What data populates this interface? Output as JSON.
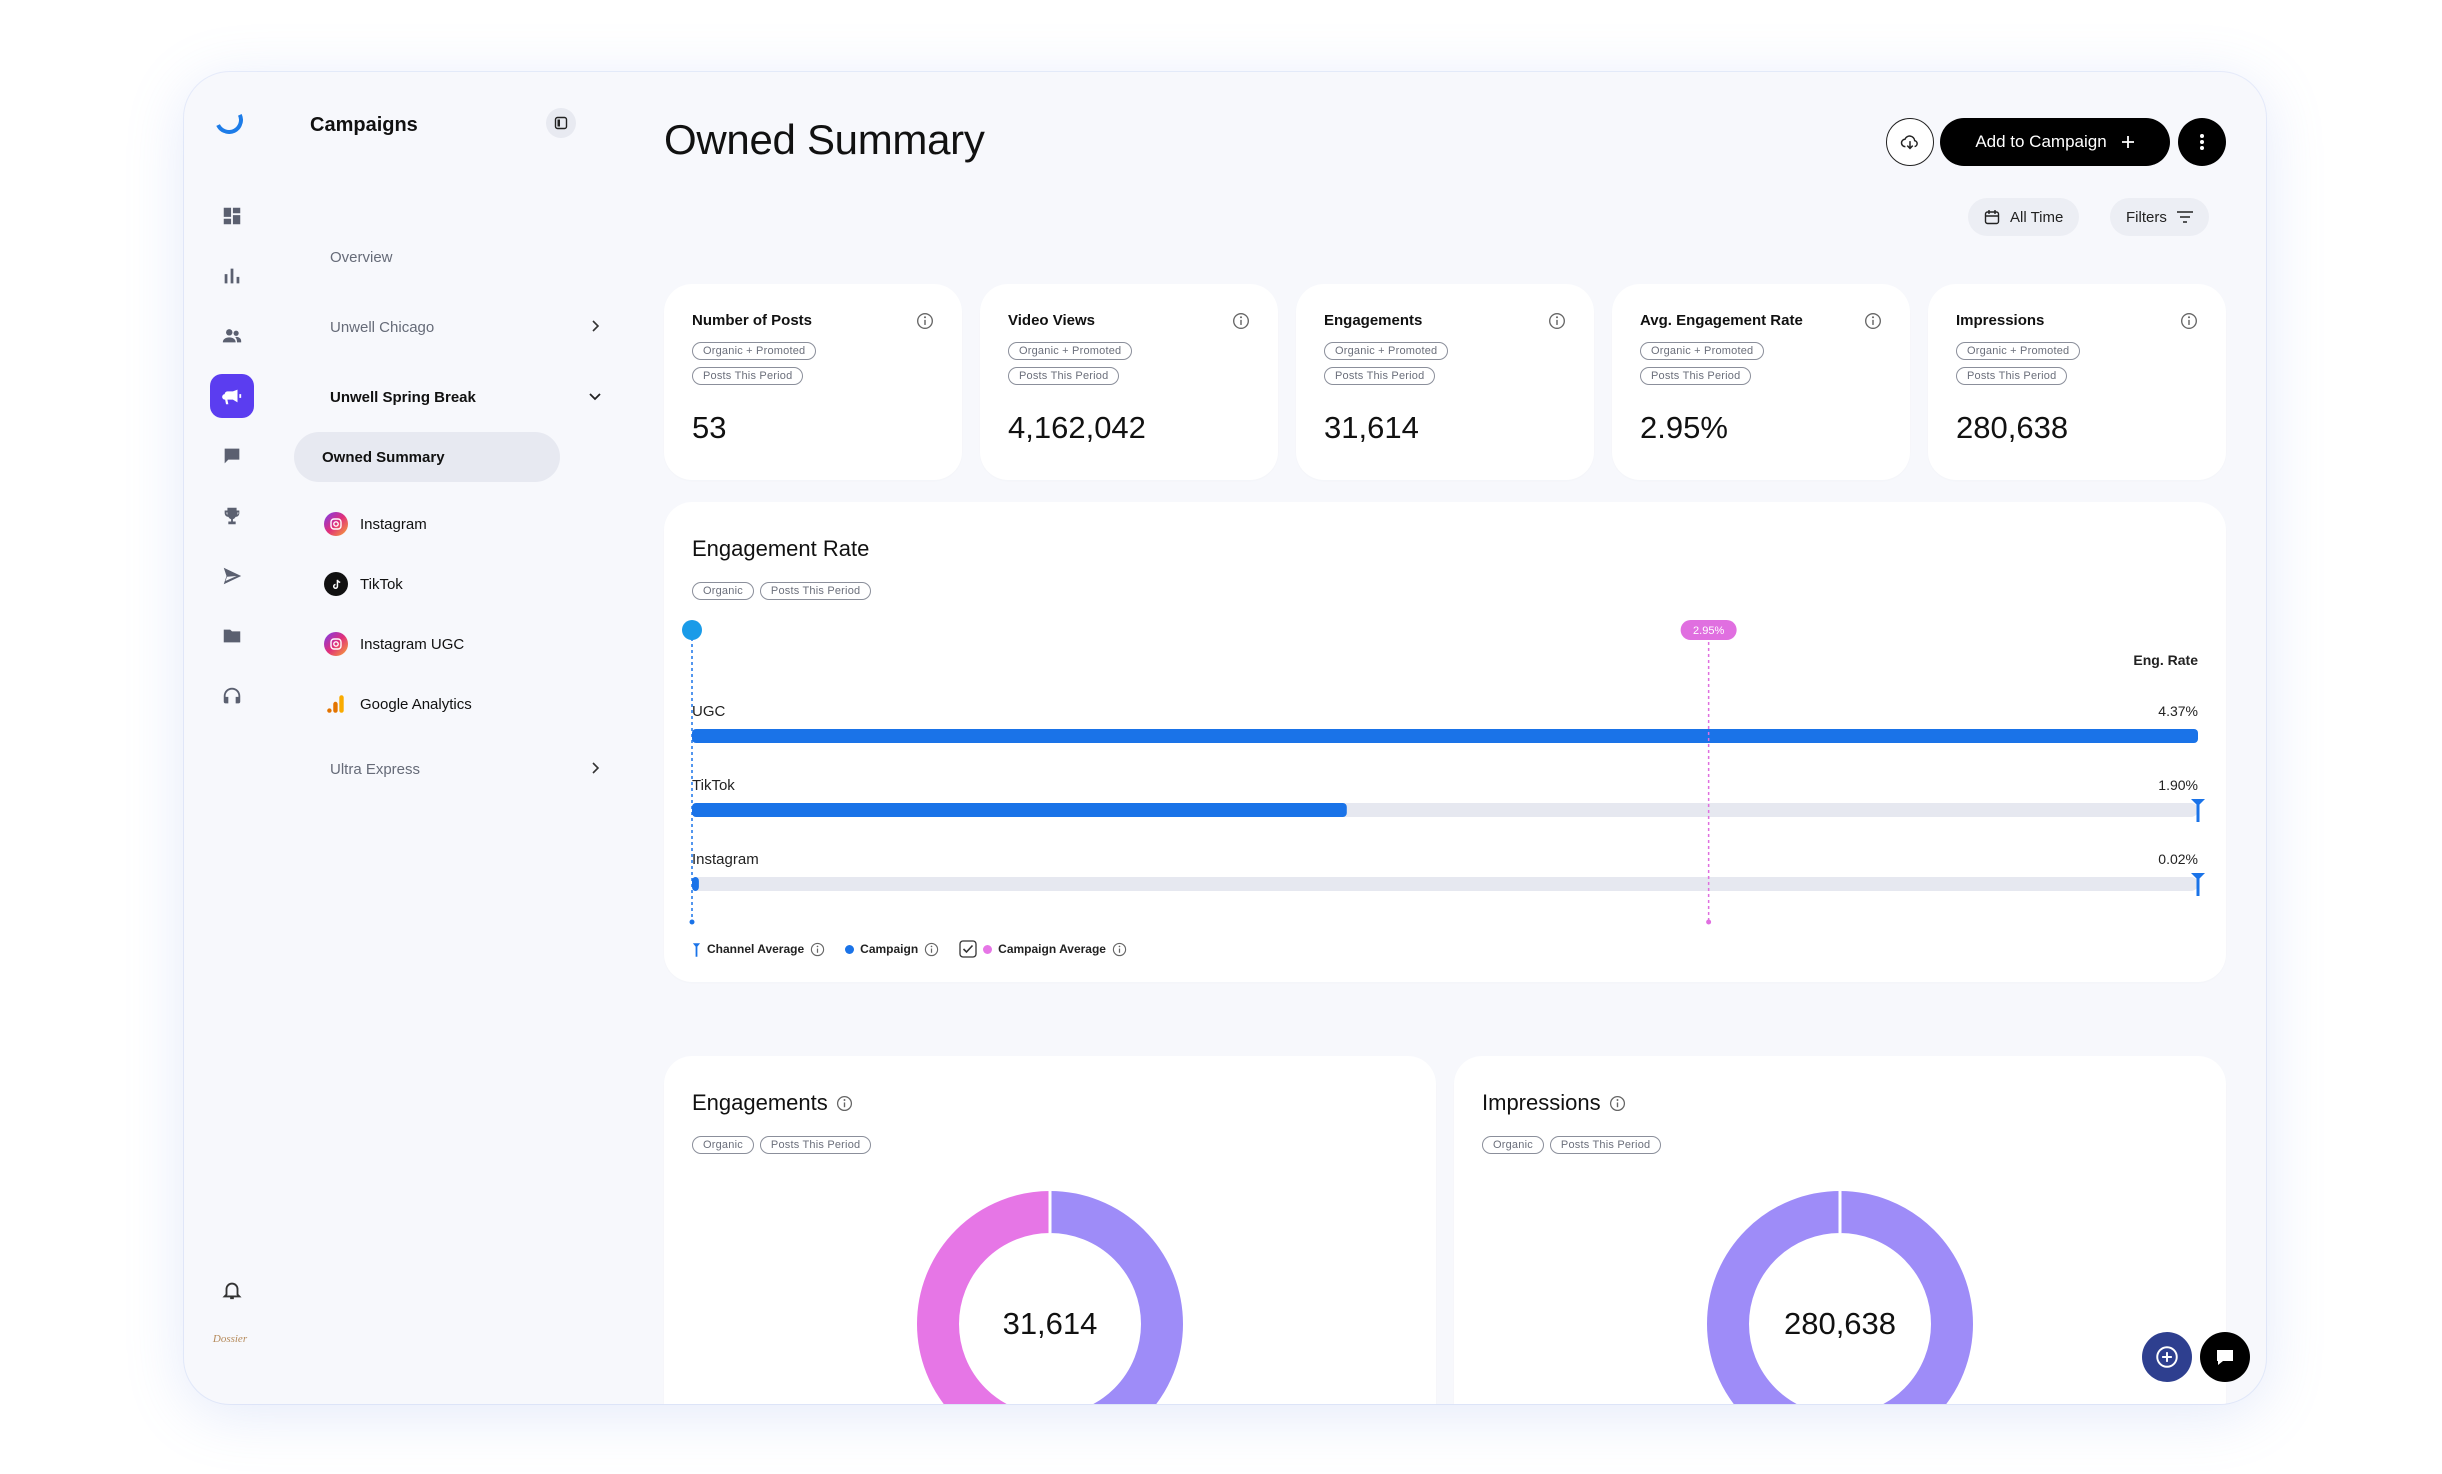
{
  "sidebar": {
    "title": "Campaigns",
    "items": [
      {
        "label": "Overview"
      },
      {
        "label": "Unwell Chicago"
      },
      {
        "label": "Unwell Spring Break"
      },
      {
        "label": "Owned Summary"
      },
      {
        "label": "Instagram"
      },
      {
        "label": "TikTok"
      },
      {
        "label": "Instagram UGC"
      },
      {
        "label": "Google Analytics"
      },
      {
        "label": "Ultra Express"
      }
    ],
    "brand_logo_text": "Dossier"
  },
  "header": {
    "title": "Owned Summary",
    "add_button": "Add to Campaign",
    "date_filter": "All Time",
    "filters_button": "Filters"
  },
  "tags": {
    "organic_promoted": "Organic + Promoted",
    "posts_period": "Posts This Period",
    "organic": "Organic"
  },
  "kpis": [
    {
      "title": "Number of Posts",
      "value": "53"
    },
    {
      "title": "Video Views",
      "value": "4,162,042"
    },
    {
      "title": "Engagements",
      "value": "31,614"
    },
    {
      "title": "Avg. Engagement Rate",
      "value": "2.95%"
    },
    {
      "title": "Impressions",
      "value": "280,638"
    }
  ],
  "engagement_rate": {
    "title": "Engagement Rate",
    "column_header": "Eng. Rate",
    "campaign_average_label": "2.95%",
    "legend": {
      "channel_average": "Channel Average",
      "campaign": "Campaign",
      "campaign_average": "Campaign Average"
    }
  },
  "engagements_section": {
    "title": "Engagements",
    "center_value": "31,614"
  },
  "impressions_section": {
    "title": "Impressions",
    "center_value": "280,638"
  },
  "chart_data": [
    {
      "type": "bar",
      "orientation": "horizontal",
      "title": "Engagement Rate",
      "categories": [
        "UGC",
        "TikTok",
        "Instagram"
      ],
      "values": [
        4.37,
        1.9,
        0.02
      ],
      "value_labels": [
        "4.37%",
        "1.90%",
        "0.02%"
      ],
      "xlim": [
        0,
        4.37
      ],
      "reference_line": {
        "label": "2.95%",
        "value": 2.95
      },
      "colors": {
        "bar": "#1a73e8",
        "track": "#e6e8f0",
        "reference": "#e06fe0"
      }
    },
    {
      "type": "pie",
      "title": "Engagements",
      "center": "31,614",
      "slices": [
        {
          "value": 50,
          "color": "#9e8cf8"
        },
        {
          "value": 50,
          "color": "#e676e6"
        }
      ]
    },
    {
      "type": "pie",
      "title": "Impressions",
      "center": "280,638",
      "slices": [
        {
          "value": 100,
          "color": "#9e8cf8"
        }
      ]
    }
  ]
}
